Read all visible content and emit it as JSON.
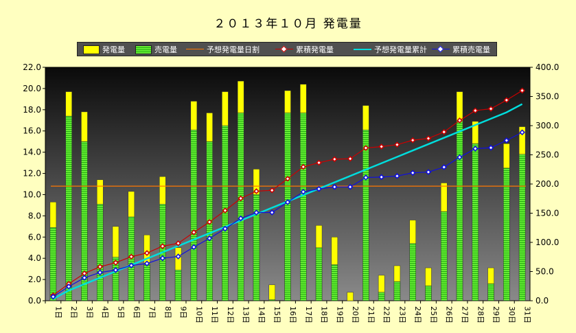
{
  "chart_data": {
    "type": "bar",
    "title": "２０１３年１０月 発電量",
    "categories": [
      "1日",
      "2日",
      "3日",
      "4日",
      "5日",
      "6日",
      "7日",
      "8日",
      "9日",
      "10日",
      "11日",
      "12日",
      "13日",
      "14日",
      "15日",
      "16日",
      "17日",
      "18日",
      "19日",
      "20日",
      "21日",
      "22日",
      "23日",
      "24日",
      "25日",
      "26日",
      "27日",
      "28日",
      "29日",
      "30日",
      "31日"
    ],
    "series": [
      {
        "name": "発電量",
        "type": "bar",
        "color": "#ffff00",
        "axis": "left",
        "values": [
          9.3,
          19.7,
          17.8,
          11.4,
          7.0,
          10.3,
          6.2,
          11.7,
          5.0,
          18.8,
          17.7,
          19.7,
          20.7,
          12.4,
          1.5,
          19.8,
          20.4,
          7.1,
          6.0,
          0.8,
          18.4,
          2.4,
          3.3,
          7.6,
          3.1,
          11.1,
          19.7,
          16.9,
          3.1,
          14.8,
          16.4
        ]
      },
      {
        "name": "売電量",
        "type": "bar",
        "color": "#55dd22",
        "axis": "left",
        "values": [
          6.9,
          17.4,
          15.0,
          9.1,
          4.1,
          7.9,
          3.4,
          9.1,
          2.9,
          16.1,
          15.0,
          16.5,
          17.7,
          10.0,
          0.1,
          17.7,
          17.7,
          5.0,
          3.4,
          0.0,
          16.1,
          0.8,
          1.8,
          5.4,
          1.4,
          8.4,
          16.9,
          14.8,
          1.6,
          12.5,
          13.8
        ]
      },
      {
        "name": "予想発電量日割",
        "type": "line",
        "color": "#ff7700",
        "axis": "left",
        "values": [
          10.8,
          10.8,
          10.8,
          10.8,
          10.8,
          10.8,
          10.8,
          10.8,
          10.8,
          10.8,
          10.8,
          10.8,
          10.8,
          10.8,
          10.8,
          10.8,
          10.8,
          10.8,
          10.8,
          10.8,
          10.8,
          10.8,
          10.8,
          10.8,
          10.8,
          10.8,
          10.8,
          10.8,
          10.8,
          10.8,
          10.8
        ]
      },
      {
        "name": "累積発電量",
        "type": "line",
        "color": "#cc0000",
        "axis": "right",
        "values": [
          9.3,
          29.0,
          46.8,
          58.2,
          65.2,
          75.5,
          81.7,
          93.4,
          98.4,
          117.2,
          134.9,
          154.6,
          175.3,
          187.7,
          189.2,
          209.0,
          229.4,
          236.5,
          242.5,
          243.3,
          261.7,
          264.1,
          267.4,
          275.0,
          278.1,
          289.2,
          308.9,
          325.8,
          328.9,
          343.7,
          360.1
        ]
      },
      {
        "name": "予想発電量累計",
        "type": "line",
        "color": "#00dddd",
        "axis": "right",
        "values": [
          3.0,
          17.6,
          28.5,
          39.4,
          50.3,
          61.2,
          72.1,
          83.0,
          93.9,
          104.8,
          115.7,
          126.6,
          137.5,
          148.4,
          159.3,
          170.2,
          181.1,
          192.0,
          202.9,
          213.8,
          224.7,
          235.6,
          246.5,
          257.4,
          268.3,
          279.2,
          290.1,
          301.0,
          311.9,
          322.8,
          337.0
        ]
      },
      {
        "name": "累積売電量",
        "type": "line",
        "color": "#1010dd",
        "axis": "right",
        "values": [
          6.9,
          24.3,
          39.3,
          48.4,
          52.5,
          60.4,
          63.8,
          72.9,
          75.8,
          91.9,
          106.9,
          123.4,
          141.1,
          151.1,
          151.2,
          168.9,
          186.6,
          191.6,
          195.0,
          195.0,
          211.1,
          211.9,
          213.7,
          219.1,
          220.5,
          228.9,
          245.8,
          260.6,
          262.2,
          274.7,
          288.5
        ]
      }
    ],
    "y_left": {
      "min": 0,
      "max": 22,
      "ticks": [
        "0.0",
        "2.0",
        "4.0",
        "6.0",
        "8.0",
        "10.0",
        "12.0",
        "14.0",
        "16.0",
        "18.0",
        "20.0",
        "22.0"
      ]
    },
    "y_right": {
      "min": 0,
      "max": 400,
      "ticks": [
        "0.0",
        "50.0",
        "100.0",
        "150.0",
        "200.0",
        "250.0",
        "300.0",
        "350.0",
        "400.0"
      ]
    },
    "legend_position": "top",
    "grid": false
  }
}
